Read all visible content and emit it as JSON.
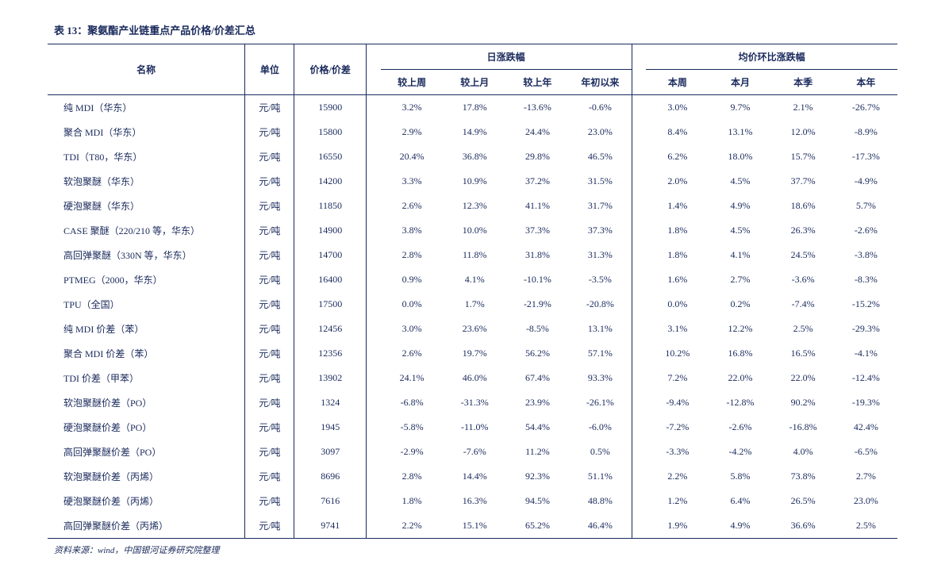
{
  "title": "表 13：聚氨酯产业链重点产品价格/价差汇总",
  "headers": {
    "name": "名称",
    "unit": "单位",
    "price": "价格/价差",
    "group_daily": "日涨跌幅",
    "group_avg": "均价环比涨跌幅",
    "sub": [
      "较上周",
      "较上月",
      "较上年",
      "年初以来",
      "本周",
      "本月",
      "本季",
      "本年"
    ]
  },
  "rows": [
    {
      "name": "纯 MDI（华东）",
      "unit": "元/吨",
      "price": "15900",
      "v": [
        "3.2%",
        "17.8%",
        "-13.6%",
        "-0.6%",
        "3.0%",
        "9.7%",
        "2.1%",
        "-26.7%"
      ]
    },
    {
      "name": "聚合 MDI（华东）",
      "unit": "元/吨",
      "price": "15800",
      "v": [
        "2.9%",
        "14.9%",
        "24.4%",
        "23.0%",
        "8.4%",
        "13.1%",
        "12.0%",
        "-8.9%"
      ]
    },
    {
      "name": "TDI（T80，华东）",
      "unit": "元/吨",
      "price": "16550",
      "v": [
        "20.4%",
        "36.8%",
        "29.8%",
        "46.5%",
        "6.2%",
        "18.0%",
        "15.7%",
        "-17.3%"
      ]
    },
    {
      "name": "软泡聚醚（华东）",
      "unit": "元/吨",
      "price": "14200",
      "v": [
        "3.3%",
        "10.9%",
        "37.2%",
        "31.5%",
        "2.0%",
        "4.5%",
        "37.7%",
        "-4.9%"
      ]
    },
    {
      "name": "硬泡聚醚（华东）",
      "unit": "元/吨",
      "price": "11850",
      "v": [
        "2.6%",
        "12.3%",
        "41.1%",
        "31.7%",
        "1.4%",
        "4.9%",
        "18.6%",
        "5.7%"
      ]
    },
    {
      "name": "CASE 聚醚（220/210 等，华东）",
      "unit": "元/吨",
      "price": "14900",
      "v": [
        "3.8%",
        "10.0%",
        "37.3%",
        "37.3%",
        "1.8%",
        "4.5%",
        "26.3%",
        "-2.6%"
      ]
    },
    {
      "name": "高回弹聚醚（330N 等，华东）",
      "unit": "元/吨",
      "price": "14700",
      "v": [
        "2.8%",
        "11.8%",
        "31.8%",
        "31.3%",
        "1.8%",
        "4.1%",
        "24.5%",
        "-3.8%"
      ]
    },
    {
      "name": "PTMEG（2000，华东）",
      "unit": "元/吨",
      "price": "16400",
      "v": [
        "0.9%",
        "4.1%",
        "-10.1%",
        "-3.5%",
        "1.6%",
        "2.7%",
        "-3.6%",
        "-8.3%"
      ]
    },
    {
      "name": "TPU（全国）",
      "unit": "元/吨",
      "price": "17500",
      "v": [
        "0.0%",
        "1.7%",
        "-21.9%",
        "-20.8%",
        "0.0%",
        "0.2%",
        "-7.4%",
        "-15.2%"
      ]
    },
    {
      "name": "纯 MDI 价差（苯）",
      "unit": "元/吨",
      "price": "12456",
      "v": [
        "3.0%",
        "23.6%",
        "-8.5%",
        "13.1%",
        "3.1%",
        "12.2%",
        "2.5%",
        "-29.3%"
      ]
    },
    {
      "name": "聚合 MDI 价差（苯）",
      "unit": "元/吨",
      "price": "12356",
      "v": [
        "2.6%",
        "19.7%",
        "56.2%",
        "57.1%",
        "10.2%",
        "16.8%",
        "16.5%",
        "-4.1%"
      ]
    },
    {
      "name": "TDI 价差（甲苯）",
      "unit": "元/吨",
      "price": "13902",
      "v": [
        "24.1%",
        "46.0%",
        "67.4%",
        "93.3%",
        "7.2%",
        "22.0%",
        "22.0%",
        "-12.4%"
      ]
    },
    {
      "name": "软泡聚醚价差（PO）",
      "unit": "元/吨",
      "price": "1324",
      "v": [
        "-6.8%",
        "-31.3%",
        "23.9%",
        "-26.1%",
        "-9.4%",
        "-12.8%",
        "90.2%",
        "-19.3%"
      ]
    },
    {
      "name": "硬泡聚醚价差（PO）",
      "unit": "元/吨",
      "price": "1945",
      "v": [
        "-5.8%",
        "-11.0%",
        "54.4%",
        "-6.0%",
        "-7.2%",
        "-2.6%",
        "-16.8%",
        "42.4%"
      ]
    },
    {
      "name": "高回弹聚醚价差（PO）",
      "unit": "元/吨",
      "price": "3097",
      "v": [
        "-2.9%",
        "-7.6%",
        "11.2%",
        "0.5%",
        "-3.3%",
        "-4.2%",
        "4.0%",
        "-6.5%"
      ]
    },
    {
      "name": "软泡聚醚价差（丙烯）",
      "unit": "元/吨",
      "price": "8696",
      "v": [
        "2.8%",
        "14.4%",
        "92.3%",
        "51.1%",
        "2.2%",
        "5.8%",
        "73.8%",
        "2.7%"
      ]
    },
    {
      "name": "硬泡聚醚价差（丙烯）",
      "unit": "元/吨",
      "price": "7616",
      "v": [
        "1.8%",
        "16.3%",
        "94.5%",
        "48.8%",
        "1.2%",
        "6.4%",
        "26.5%",
        "23.0%"
      ]
    },
    {
      "name": "高回弹聚醚价差（丙烯）",
      "unit": "元/吨",
      "price": "9741",
      "v": [
        "2.2%",
        "15.1%",
        "65.2%",
        "46.4%",
        "1.9%",
        "4.9%",
        "36.6%",
        "2.5%"
      ]
    }
  ],
  "source": "资料来源：wind，中国银河证券研究院整理",
  "style": {
    "text_color": "#1a2a5c",
    "border_color": "#1a2a5c",
    "background": "#ffffff",
    "title_fontsize": 13,
    "cell_fontsize": 12,
    "source_fontsize": 11
  }
}
